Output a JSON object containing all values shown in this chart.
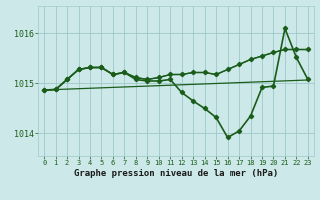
{
  "title": "Graphe pression niveau de la mer (hPa)",
  "bg_color": "#cce8e8",
  "grid_color": "#9ec8c8",
  "line_color": "#1a5c1a",
  "x_ticks": [
    0,
    1,
    2,
    3,
    4,
    5,
    6,
    7,
    8,
    9,
    10,
    11,
    12,
    13,
    14,
    15,
    16,
    17,
    18,
    19,
    20,
    21,
    22,
    23
  ],
  "y_ticks": [
    1014,
    1015,
    1016
  ],
  "ylim": [
    1013.55,
    1016.55
  ],
  "xlim": [
    -0.5,
    23.5
  ],
  "series": [
    {
      "x": [
        0,
        23
      ],
      "y": [
        1014.87,
        1015.07
      ],
      "marker": null,
      "linewidth": 0.9
    },
    {
      "x": [
        0,
        1,
        2,
        3,
        4,
        5,
        6,
        7,
        8,
        9,
        10,
        11,
        12,
        13,
        14,
        15,
        16,
        17,
        18,
        19,
        20,
        21,
        22,
        23
      ],
      "y": [
        1014.87,
        1014.88,
        1015.08,
        1015.28,
        1015.32,
        1015.32,
        1015.18,
        1015.22,
        1015.12,
        1015.08,
        1015.12,
        1015.18,
        1015.18,
        1015.22,
        1015.22,
        1015.18,
        1015.28,
        1015.38,
        1015.48,
        1015.55,
        1015.62,
        1015.68,
        1015.68,
        1015.68
      ],
      "marker": null,
      "linewidth": 0.9
    },
    {
      "x": [
        0,
        1,
        2,
        3,
        4,
        5,
        6,
        7,
        8,
        9,
        10,
        11,
        12,
        13,
        14,
        15,
        16,
        17,
        18,
        19,
        20,
        21,
        22,
        23
      ],
      "y": [
        1014.87,
        1014.88,
        1015.08,
        1015.28,
        1015.32,
        1015.32,
        1015.18,
        1015.22,
        1015.12,
        1015.08,
        1015.12,
        1015.18,
        1015.18,
        1015.22,
        1015.22,
        1015.18,
        1015.28,
        1015.38,
        1015.48,
        1015.55,
        1015.62,
        1015.68,
        1015.68,
        1015.68
      ],
      "marker": "D",
      "linewidth": 1.0
    },
    {
      "x": [
        0,
        1,
        2,
        3,
        4,
        5,
        6,
        7,
        8,
        9,
        10,
        11,
        12,
        13,
        14,
        15,
        16,
        17,
        18,
        19,
        20,
        21,
        22,
        23
      ],
      "y": [
        1014.87,
        1014.88,
        1015.08,
        1015.28,
        1015.32,
        1015.32,
        1015.18,
        1015.22,
        1015.08,
        1015.05,
        1015.05,
        1015.08,
        1014.82,
        1014.65,
        1014.5,
        1014.32,
        1013.92,
        1014.05,
        1014.35,
        1014.92,
        1014.95,
        1016.1,
        1015.52,
        1015.08
      ],
      "marker": "D",
      "linewidth": 1.2
    }
  ],
  "title_fontsize": 6.5,
  "xtick_fontsize": 5.0,
  "ytick_fontsize": 6.0
}
